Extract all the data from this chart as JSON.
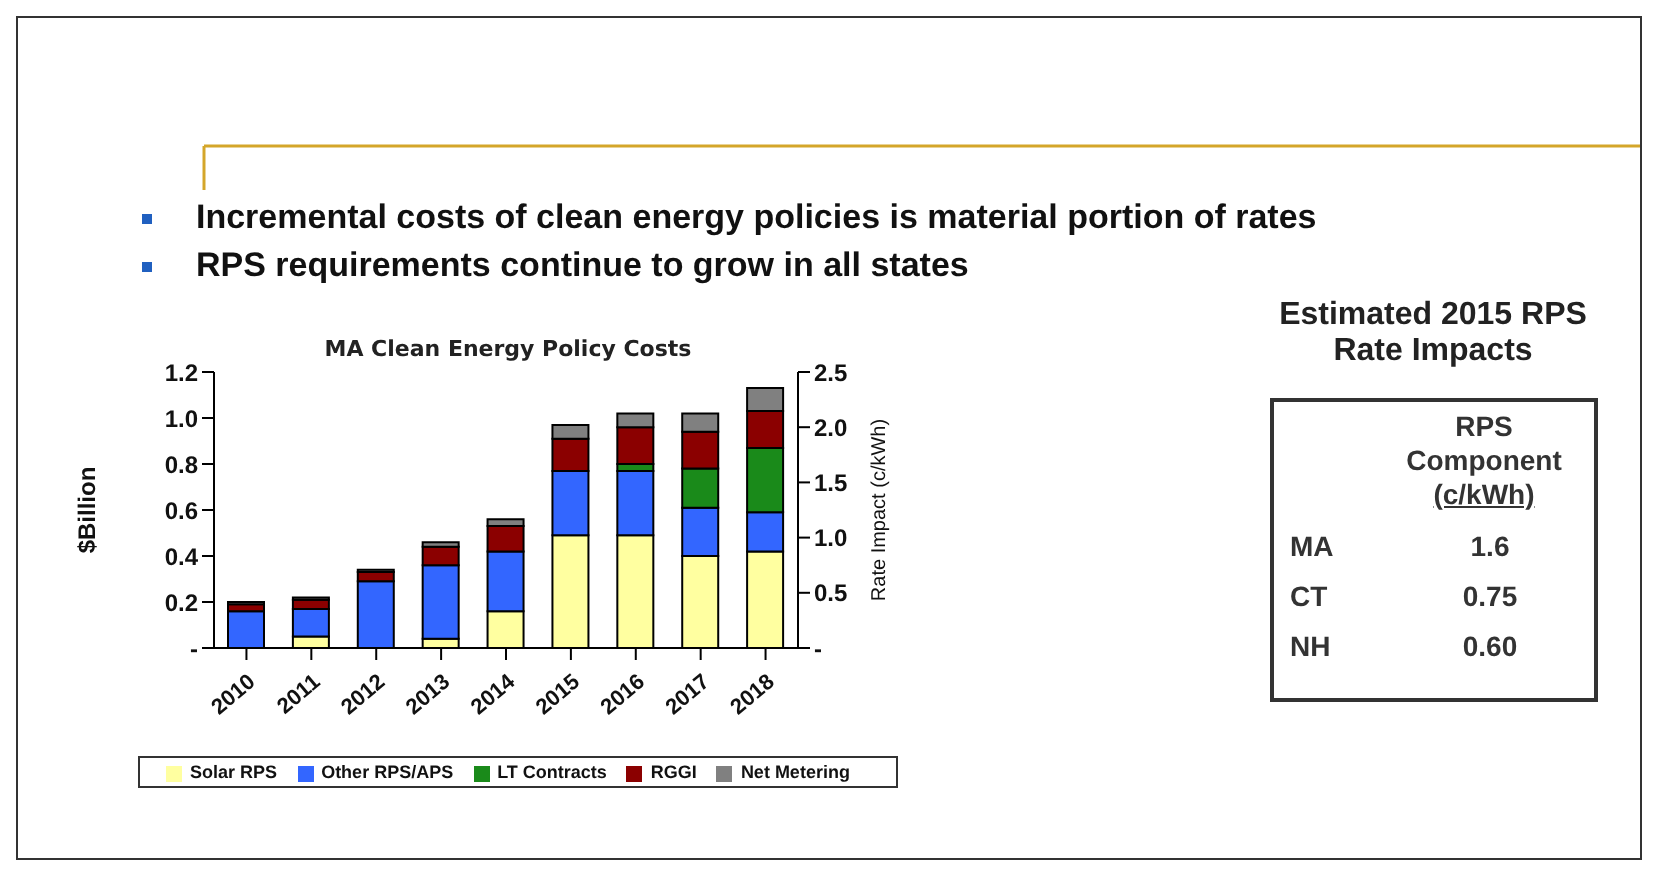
{
  "chart_data": {
    "type": "bar",
    "title": "MA Clean Energy Policy Costs",
    "ylabel": "$Billion",
    "y2label": "Rate Impact (c/kWh)",
    "categories": [
      "2010",
      "2011",
      "2012",
      "2013",
      "2014",
      "2015",
      "2016",
      "2017",
      "2018"
    ],
    "stacked": true,
    "series": [
      {
        "name": "Solar RPS",
        "color": "#ffffa0",
        "values": [
          0,
          0.05,
          0,
          0.04,
          0.16,
          0.49,
          0.49,
          0.4,
          0.42
        ]
      },
      {
        "name": "Other RPS/APS",
        "color": "#3366ff",
        "values": [
          0.16,
          0.12,
          0.29,
          0.32,
          0.26,
          0.28,
          0.28,
          0.21,
          0.17
        ]
      },
      {
        "name": "LT Contracts",
        "color": "#1a8a1a",
        "values": [
          0,
          0,
          0,
          0,
          0,
          0,
          0.03,
          0.17,
          0.28
        ]
      },
      {
        "name": "RGGI",
        "color": "#8b0000",
        "values": [
          0.03,
          0.04,
          0.04,
          0.08,
          0.11,
          0.14,
          0.16,
          0.16,
          0.16
        ]
      },
      {
        "name": "Net Metering",
        "color": "#808080",
        "values": [
          0.01,
          0.01,
          0.01,
          0.02,
          0.03,
          0.06,
          0.06,
          0.08,
          0.1
        ]
      }
    ],
    "ylim": [
      0,
      1.2
    ],
    "yticks": [
      {
        "value": 0,
        "label": "-"
      },
      0.2,
      0.4,
      0.6,
      0.8,
      {
        "value": 1,
        "label": "1.0"
      },
      1.2
    ],
    "y2lim": [
      0,
      2.5
    ],
    "y2ticks": [
      {
        "value": 0,
        "label": "-"
      },
      0.5,
      {
        "value": 1,
        "label": "1.0"
      },
      1.5,
      {
        "value": 2,
        "label": "2.0"
      },
      2.5
    ],
    "legend": "bottom",
    "annotations": [
      "Incremental costs of clean energy policies is material portion of rates",
      "RPS requirements continue to grow in all states",
      "Estimated 2015 RPS Rate Impacts",
      "RPS Component",
      "(c/kWh)",
      "MA",
      "1.6",
      "CT",
      "0.75",
      "NH",
      "0.60"
    ]
  }
}
